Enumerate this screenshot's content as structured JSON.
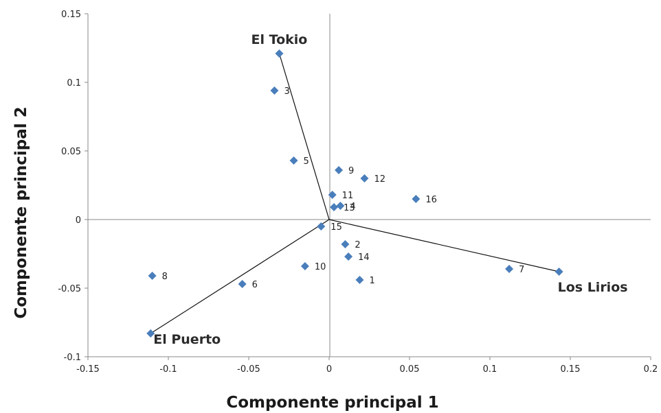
{
  "chart_data": {
    "type": "scatter",
    "xlabel": "Componente principal 1",
    "ylabel": "Componente principal 2",
    "xlim": [
      -0.15,
      0.2
    ],
    "ylim": [
      -0.1,
      0.15
    ],
    "xticks": [
      -0.15,
      -0.1,
      -0.05,
      0,
      0.05,
      0.1,
      0.15,
      0.2
    ],
    "xtick_labels": [
      "-0.15",
      "-0.1",
      "-0.05",
      "0",
      "0.05",
      "0.1",
      "0.15",
      "0.2"
    ],
    "yticks": [
      -0.1,
      -0.05,
      0,
      0.05,
      0.1,
      0.15
    ],
    "ytick_labels": [
      "-0.1",
      "-0.05",
      "0",
      "0.05",
      "0.1",
      "0.15"
    ],
    "marker_color": "#4a7ebb",
    "points": [
      {
        "label": "1",
        "x": 0.019,
        "y": -0.044
      },
      {
        "label": "2",
        "x": 0.01,
        "y": -0.018
      },
      {
        "label": "3",
        "x": -0.034,
        "y": 0.094
      },
      {
        "label": "4",
        "x": 0.007,
        "y": 0.01
      },
      {
        "label": "5",
        "x": -0.022,
        "y": 0.043
      },
      {
        "label": "6",
        "x": -0.054,
        "y": -0.047
      },
      {
        "label": "7",
        "x": 0.112,
        "y": -0.036
      },
      {
        "label": "8",
        "x": -0.11,
        "y": -0.041
      },
      {
        "label": "9",
        "x": 0.006,
        "y": 0.036
      },
      {
        "label": "10",
        "x": -0.015,
        "y": -0.034
      },
      {
        "label": "11",
        "x": 0.002,
        "y": 0.018
      },
      {
        "label": "12",
        "x": 0.022,
        "y": 0.03
      },
      {
        "label": "13",
        "x": 0.003,
        "y": 0.009
      },
      {
        "label": "14",
        "x": 0.012,
        "y": -0.027
      },
      {
        "label": "15",
        "x": -0.005,
        "y": -0.005
      },
      {
        "label": "16",
        "x": 0.054,
        "y": 0.015
      }
    ],
    "vectors": [
      {
        "name": "El Tokio",
        "x": -0.031,
        "y": 0.121
      },
      {
        "name": "Los Lirios",
        "x": 0.143,
        "y": -0.038
      },
      {
        "name": "El Puerto",
        "x": -0.111,
        "y": -0.083
      }
    ]
  }
}
